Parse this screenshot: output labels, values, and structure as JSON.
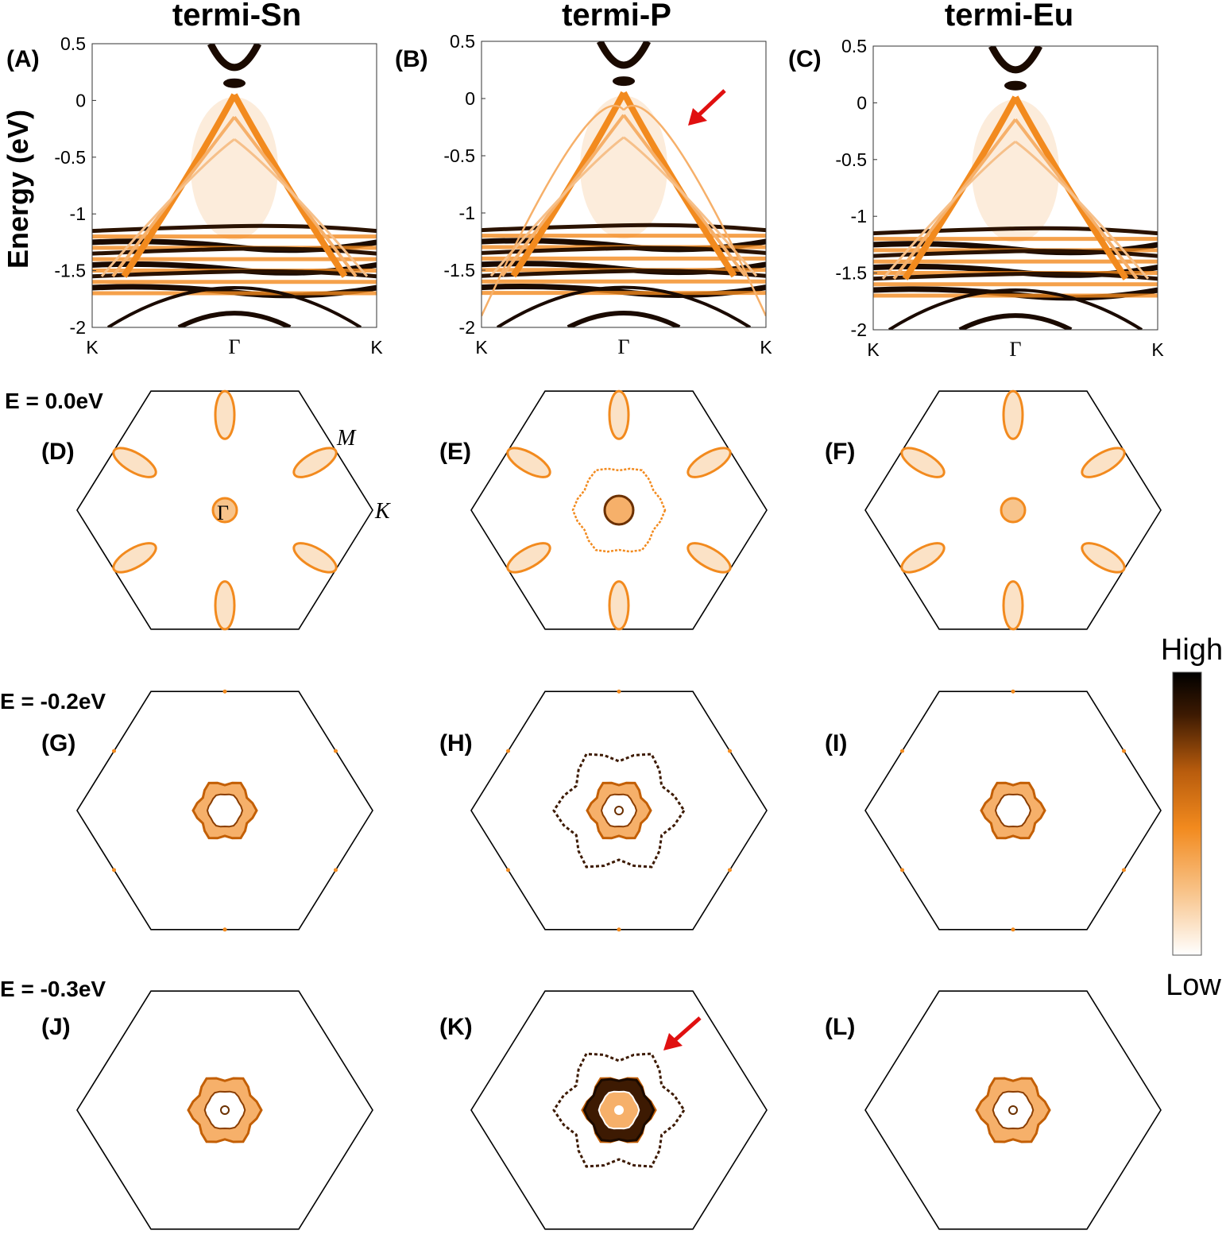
{
  "columns": [
    {
      "header": "termi-Sn",
      "band_label": "(A)",
      "fs_labels": [
        "(D)",
        "(G)",
        "(J)"
      ]
    },
    {
      "header": "termi-P",
      "band_label": "(B)",
      "fs_labels": [
        "(E)",
        "(H)",
        "(K)"
      ]
    },
    {
      "header": "termi-Eu",
      "band_label": "(C)",
      "fs_labels": [
        "(F)",
        "(I)",
        "(L)"
      ]
    }
  ],
  "band_axis": {
    "ylabel": "Energy (eV)",
    "yticks": [
      "0.5",
      "0",
      "-0.5",
      "-1",
      "-1.5",
      "-2"
    ],
    "ylim": [
      -2,
      0.5
    ],
    "xticks": [
      "K",
      "Γ",
      "K"
    ]
  },
  "energy_rows": [
    "E = 0.0eV",
    "E = -0.2eV",
    "E = -0.3eV"
  ],
  "bz_labels": {
    "M": "M",
    "K": "K",
    "Gamma": "Γ"
  },
  "colorbar": {
    "high": "High",
    "low": "Low"
  },
  "colors": {
    "band": "#f28a1e",
    "dark": "#1a0a00",
    "arrow": "#e01010"
  }
}
